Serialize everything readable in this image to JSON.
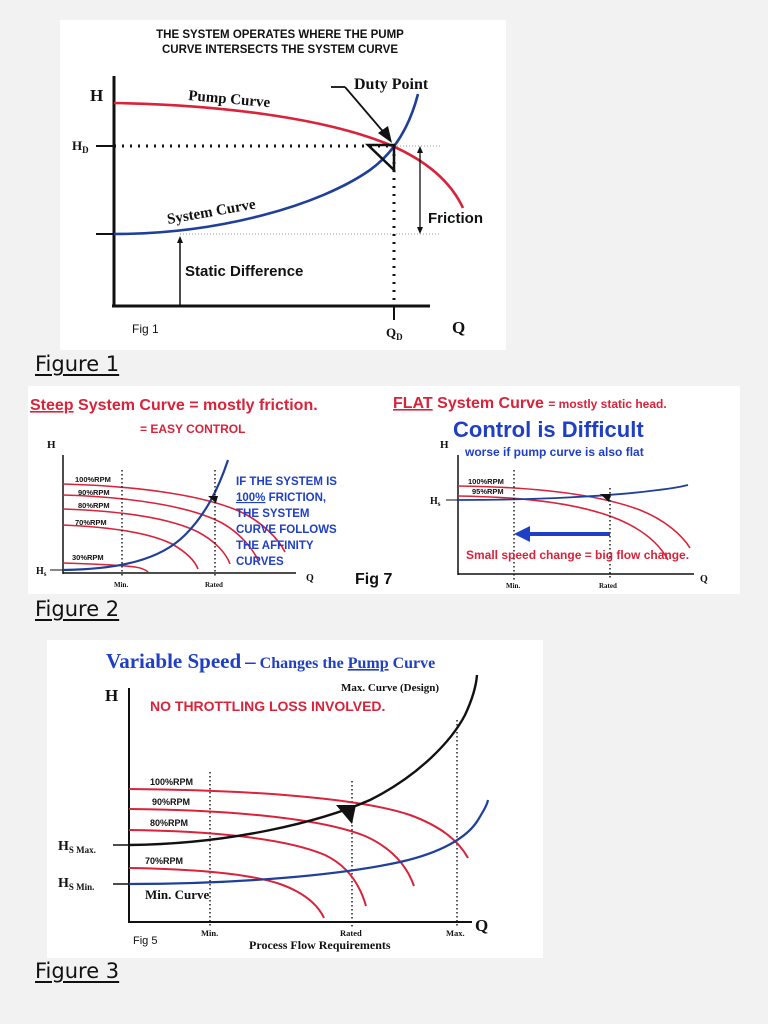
{
  "fig1": {
    "title_line1": "THE SYSTEM OPERATES WHERE THE PUMP",
    "title_line2": "CURVE INTERSECTS THE SYSTEM CURVE",
    "h_label": "H",
    "hd_label": "H",
    "hd_sub": "D",
    "pump_curve": "Pump Curve",
    "duty_point": "Duty Point",
    "system_curve": "System Curve",
    "friction": "Friction",
    "static_difference": "Static Difference",
    "fig_label": "Fig 1",
    "qd_label": "Q",
    "qd_sub": "D",
    "q_label": "Q",
    "caption": "Figure 1"
  },
  "fig2": {
    "left_heading_steep": "Steep",
    "left_heading_rest": "System Curve = mostly friction.",
    "left_sub": "= EASY CONTROL",
    "right_heading_flat": "FLAT",
    "right_heading_mid": "System Curve",
    "right_heading_small": "= mostly static head.",
    "right_big": "Control is Difficult",
    "right_worse": "worse if pump curve is also flat",
    "h_left": "H",
    "hs_left": "H",
    "hs_left_sub": "s",
    "rpm_labels_left": [
      "100%RPM",
      "90%RPM",
      "80%RPM",
      "70%RPM",
      "30%RPM"
    ],
    "min_label": "Min.",
    "rated_label": "Rated",
    "q_left": "Q",
    "note_line1": "IF THE SYSTEM IS",
    "note_line2_u": "100%",
    "note_line2_rest": " FRICTION,",
    "note_line3": "THE SYSTEM",
    "note_line4": "CURVE FOLLOWS",
    "note_line5": "THE AFFINITY",
    "note_line6": "CURVES",
    "fig_label": "Fig 7",
    "h_right": "H",
    "hs_right": "H",
    "hs_right_sub": "s",
    "rpm_labels_right": [
      "100%RPM",
      "95%RPM"
    ],
    "small_speed": "Small speed change = big flow change.",
    "min_right": "Min.",
    "rated_right": "Rated",
    "q_right": "Q",
    "caption": "Figure 2"
  },
  "fig3": {
    "title_a": "Variable Speed",
    "title_dash": "–",
    "title_b": "Changes the",
    "title_pump": "Pump",
    "title_c": "Curve",
    "h_label": "H",
    "max_curve": "Max. Curve (Design)",
    "no_throttling": "NO THROTTLING LOSS INVOLVED.",
    "rpm_labels": [
      "100%RPM",
      "90%RPM",
      "80%RPM",
      "70%RPM"
    ],
    "hs_max": "H",
    "hs_max_sub": "S Max.",
    "hs_min": "H",
    "hs_min_sub": "S Min.",
    "min_curve": "Min. Curve",
    "fig_label": "Fig 5",
    "min_label": "Min.",
    "rated_label": "Rated",
    "max_label": "Max.",
    "q_label": "Q",
    "process_flow": "Process Flow Requirements",
    "caption": "Figure 3"
  },
  "colors": {
    "pump": "#d9233a",
    "system": "#1f3f9a",
    "text_blue": "#1f3fc4"
  }
}
